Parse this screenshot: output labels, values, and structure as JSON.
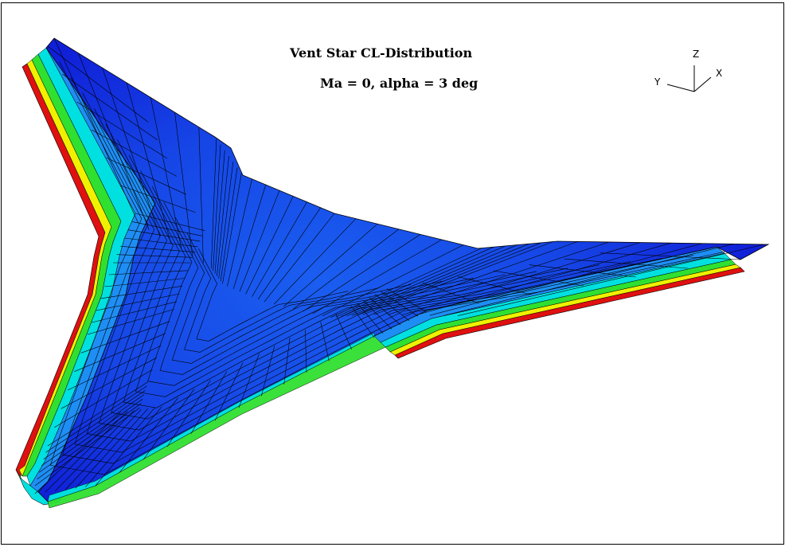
{
  "plot": {
    "title": "Vent Star CL-Distribution",
    "subtitle": "Ma = 0, alpha = 3 deg"
  },
  "axes_triad": {
    "z_label": "Z",
    "y_label": "Y",
    "x_label": "X"
  },
  "colormap": {
    "low": "#1010e0",
    "mid_low": "#1e6ef5",
    "mid": "#00e0e0",
    "mid_high": "#30e030",
    "high_yellow": "#f0f000",
    "high": "#e01010"
  }
}
